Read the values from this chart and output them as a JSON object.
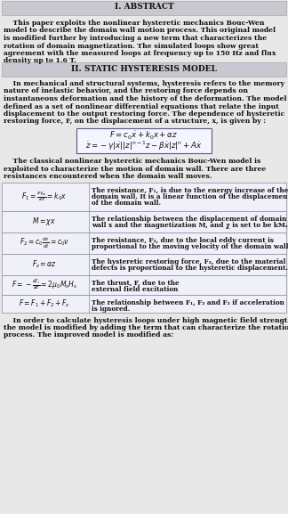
{
  "bg_color": "#e8e8e8",
  "header_bg": "#c8c8d0",
  "title": "I. ABSTRACT",
  "title2": "II. STATIC HYSTERESIS MODEL",
  "abstract_lines": [
    "    This paper exploits the nonlinear hysteretic mechanics Bouc-Wen",
    "model to describe the domain wall motion process. This original model",
    "is modified further by introducing a new term that characterizes the",
    "rotation of domain magnetization. The simulated loops show great",
    "agreement with the measured loops at frequency up to 150 Hz and flux",
    "density up to 1.6 T."
  ],
  "intro_lines": [
    "    In mechanical and structural systems, hysteresis refers to the memory",
    "nature of inelastic behavior, and the restoring force depends on",
    "instantaneous deformation and the history of the deformation. The model is",
    "defined as a set of nonlinear differential equations that relate the input",
    "displacement to the output restoring force. The dependence of hysteretic",
    "restoring force, F, on the displacement of a structure, x, is given by :"
  ],
  "body_lines": [
    "    The classical nonlinear hysteretic mechanics Bouc-Wen model is",
    "exploited to characterize the motion of domain wall. There are three",
    "resistances encountered when the domain wall moves."
  ],
  "footer_lines": [
    "    In order to calculate hysteresis loops under high magnetic field strengths,",
    "the model is modified by adding the term that can characterize the rotation",
    "process. The improved model is modified as:"
  ],
  "table_row_heights": [
    32,
    24,
    24,
    24,
    22,
    20
  ],
  "col_split": 100
}
